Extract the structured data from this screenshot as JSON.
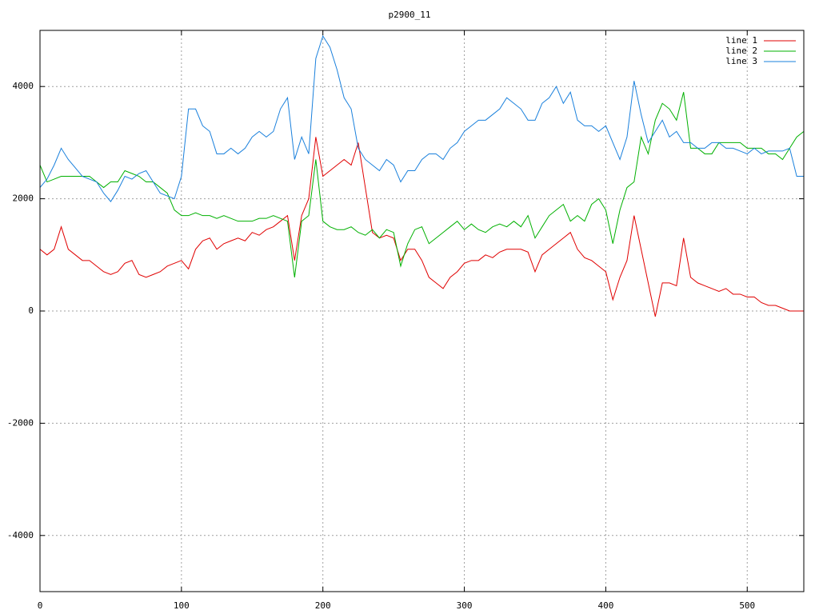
{
  "chart_data": {
    "type": "line",
    "title": "p2900_11",
    "x": [
      0,
      5,
      10,
      15,
      20,
      25,
      30,
      35,
      40,
      45,
      50,
      55,
      60,
      65,
      70,
      75,
      80,
      85,
      90,
      95,
      100,
      105,
      110,
      115,
      120,
      125,
      130,
      135,
      140,
      145,
      150,
      155,
      160,
      165,
      170,
      175,
      180,
      185,
      190,
      195,
      200,
      205,
      210,
      215,
      220,
      225,
      230,
      235,
      240,
      245,
      250,
      255,
      260,
      265,
      270,
      275,
      280,
      285,
      290,
      295,
      300,
      305,
      310,
      315,
      320,
      325,
      330,
      335,
      340,
      345,
      350,
      355,
      360,
      365,
      370,
      375,
      380,
      385,
      390,
      395,
      400,
      405,
      410,
      415,
      420,
      425,
      430,
      435,
      440,
      445,
      450,
      455,
      460,
      465,
      470,
      475,
      480,
      485,
      490,
      495,
      500,
      505,
      510,
      515,
      520,
      525,
      530,
      535,
      540
    ],
    "series": [
      {
        "name": "line 1",
        "color": "#e00000",
        "values": [
          1100,
          1000,
          1100,
          1500,
          1100,
          1000,
          900,
          900,
          800,
          700,
          650,
          700,
          850,
          900,
          650,
          600,
          650,
          700,
          800,
          850,
          900,
          750,
          1100,
          1250,
          1300,
          1100,
          1200,
          1250,
          1300,
          1250,
          1400,
          1350,
          1450,
          1500,
          1600,
          1700,
          900,
          1700,
          2000,
          3100,
          2400,
          2500,
          2600,
          2700,
          2600,
          3000,
          2200,
          1400,
          1300,
          1350,
          1300,
          900,
          1100,
          1100,
          900,
          600,
          500,
          400,
          600,
          700,
          850,
          900,
          900,
          1000,
          950,
          1050,
          1100,
          1100,
          1100,
          1050,
          700,
          1000,
          1100,
          1200,
          1300,
          1400,
          1100,
          950,
          900,
          800,
          700,
          200,
          600,
          900,
          1700,
          1100,
          500,
          -100,
          500,
          500,
          450,
          1300,
          600,
          500,
          450,
          400,
          350,
          400,
          300,
          300,
          250,
          250,
          150,
          100,
          100,
          50,
          0,
          0,
          0
        ]
      },
      {
        "name": "line 2",
        "color": "#00b000",
        "values": [
          2600,
          2300,
          2350,
          2400,
          2400,
          2400,
          2400,
          2400,
          2300,
          2200,
          2300,
          2300,
          2500,
          2450,
          2400,
          2300,
          2300,
          2200,
          2100,
          1800,
          1700,
          1700,
          1750,
          1700,
          1700,
          1650,
          1700,
          1650,
          1600,
          1600,
          1600,
          1650,
          1650,
          1700,
          1650,
          1600,
          600,
          1600,
          1700,
          2700,
          1600,
          1500,
          1450,
          1450,
          1500,
          1400,
          1350,
          1450,
          1300,
          1450,
          1400,
          800,
          1200,
          1450,
          1500,
          1200,
          1300,
          1400,
          1500,
          1600,
          1450,
          1550,
          1450,
          1400,
          1500,
          1550,
          1500,
          1600,
          1500,
          1700,
          1300,
          1500,
          1700,
          1800,
          1900,
          1600,
          1700,
          1600,
          1900,
          2000,
          1800,
          1200,
          1800,
          2200,
          2300,
          3100,
          2800,
          3400,
          3700,
          3600,
          3400,
          3900,
          2900,
          2900,
          2800,
          2800,
          3000,
          3000,
          3000,
          3000,
          2900,
          2900,
          2900,
          2800,
          2800,
          2700,
          2900,
          3100,
          3200
        ]
      },
      {
        "name": "line 3",
        "color": "#1a80dc",
        "values": [
          2200,
          2350,
          2600,
          2900,
          2700,
          2550,
          2400,
          2350,
          2300,
          2100,
          1950,
          2150,
          2400,
          2350,
          2450,
          2500,
          2300,
          2100,
          2050,
          2000,
          2400,
          3600,
          3600,
          3300,
          3200,
          2800,
          2800,
          2900,
          2800,
          2900,
          3100,
          3200,
          3100,
          3200,
          3600,
          3800,
          2700,
          3100,
          2800,
          4500,
          4900,
          4700,
          4300,
          3800,
          3600,
          2900,
          2700,
          2600,
          2500,
          2700,
          2600,
          2300,
          2500,
          2500,
          2700,
          2800,
          2800,
          2700,
          2900,
          3000,
          3200,
          3300,
          3400,
          3400,
          3500,
          3600,
          3800,
          3700,
          3600,
          3400,
          3400,
          3700,
          3800,
          4000,
          3700,
          3900,
          3400,
          3300,
          3300,
          3200,
          3300,
          3000,
          2700,
          3100,
          4100,
          3500,
          3000,
          3200,
          3400,
          3100,
          3200,
          3000,
          3000,
          2900,
          2900,
          3000,
          3000,
          2900,
          2900,
          2850,
          2800,
          2900,
          2800,
          2850,
          2850,
          2850,
          2900,
          2400,
          2400
        ]
      }
    ],
    "xlim": [
      0,
      540
    ],
    "xticks": [
      0,
      100,
      200,
      300,
      400,
      500
    ],
    "ylim": [
      -5000,
      5000
    ],
    "yticks": [
      -4000,
      -2000,
      0,
      2000,
      4000
    ],
    "grid": true,
    "legend": "top-right"
  }
}
